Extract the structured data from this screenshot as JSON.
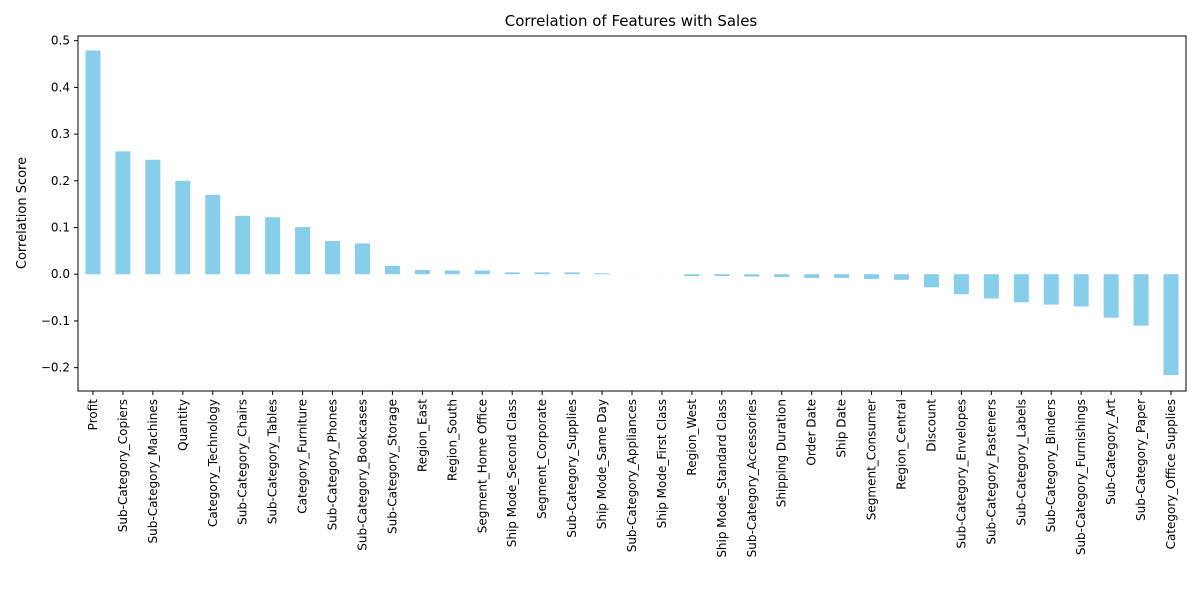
{
  "chart_data": {
    "type": "bar",
    "title": "Correlation of Features with Sales",
    "xlabel": "",
    "ylabel": "Correlation Score",
    "ylim": [
      -0.25,
      0.51
    ],
    "yticks": [
      -0.2,
      -0.1,
      0.0,
      0.1,
      0.2,
      0.3,
      0.4,
      0.5
    ],
    "ytick_labels": [
      "−0.2",
      "−0.1",
      "0.0",
      "0.1",
      "0.2",
      "0.3",
      "0.4",
      "0.5"
    ],
    "grid": false,
    "legend": "none",
    "bar_color": "#87ceeb",
    "categories": [
      "Profit",
      "Sub-Category_Copiers",
      "Sub-Category_Machines",
      "Quantity",
      "Category_Technology",
      "Sub-Category_Chairs",
      "Sub-Category_Tables",
      "Category_Furniture",
      "Sub-Category_Phones",
      "Sub-Category_Bookcases",
      "Sub-Category_Storage",
      "Region_East",
      "Region_South",
      "Segment_Home Office",
      "Ship Mode_Second Class",
      "Segment_Corporate",
      "Sub-Category_Supplies",
      "Ship Mode_Same Day",
      "Sub-Category_Appliances",
      "Ship Mode_First Class",
      "Region_West",
      "Ship Mode_Standard Class",
      "Sub-Category_Accessories",
      "Shipping Duration",
      "Order Date",
      "Ship Date",
      "Segment_Consumer",
      "Region_Central",
      "Discount",
      "Sub-Category_Envelopes",
      "Sub-Category_Fasteners",
      "Sub-Category_Labels",
      "Sub-Category_Binders",
      "Sub-Category_Furnishings",
      "Sub-Category_Art",
      "Sub-Category_Paper",
      "Category_Office Supplies"
    ],
    "values": [
      0.479,
      0.263,
      0.245,
      0.2,
      0.17,
      0.125,
      0.122,
      0.101,
      0.071,
      0.066,
      0.018,
      0.009,
      0.008,
      0.008,
      0.004,
      0.004,
      0.004,
      0.002,
      0.0001,
      0.0001,
      -0.004,
      -0.004,
      -0.005,
      -0.006,
      -0.008,
      -0.008,
      -0.01,
      -0.012,
      -0.028,
      -0.043,
      -0.052,
      -0.06,
      -0.065,
      -0.069,
      -0.093,
      -0.11,
      -0.216
    ]
  }
}
